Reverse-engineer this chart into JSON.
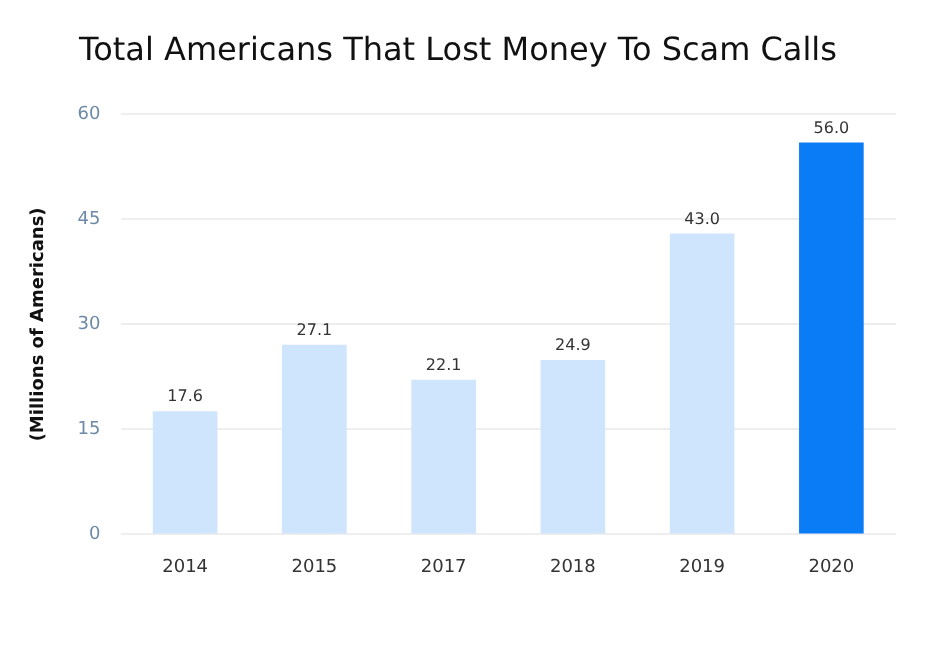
{
  "chart_data": {
    "type": "bar",
    "title": "Total Americans That Lost Money To Scam Calls",
    "ylabel": "(Millions of Americans)",
    "categories": [
      "2014",
      "2015",
      "2017",
      "2018",
      "2019",
      "2020"
    ],
    "values": [
      17.6,
      27.1,
      22.1,
      24.9,
      43.0,
      56.0
    ],
    "value_labels": [
      "17.6",
      "27.1",
      "22.1",
      "24.9",
      "43.0",
      "56.0"
    ],
    "colors": [
      "#cfe4fd",
      "#cfe4fd",
      "#cfe4fd",
      "#cfe4fd",
      "#cfe4fd",
      "#0a7cf5"
    ],
    "ylim": [
      0,
      60
    ],
    "yticks": [
      0,
      15,
      30,
      45,
      60
    ],
    "grid": "y",
    "legend": false
  }
}
